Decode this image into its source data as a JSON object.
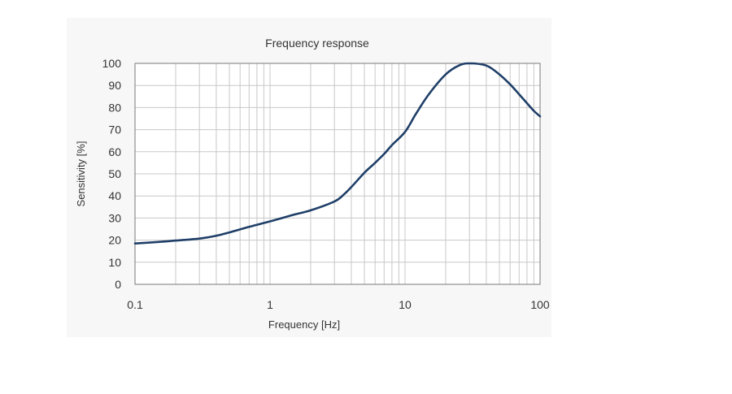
{
  "chart_data": {
    "type": "line",
    "title": "Frequency response",
    "xlabel": "Frequency [Hz]",
    "ylabel": "Sensitivity [%]",
    "xscale": "log",
    "xlim": [
      0.1,
      100
    ],
    "ylim": [
      0,
      100
    ],
    "x_ticks": [
      0.1,
      1,
      10,
      100
    ],
    "x_tick_labels": [
      "0.1",
      "1",
      "10",
      "100"
    ],
    "y_ticks": [
      0,
      10,
      20,
      30,
      40,
      50,
      60,
      70,
      80,
      90,
      100
    ],
    "grid": true,
    "colors": {
      "line": "#1f3f68",
      "grid": "#c8c8c8",
      "plot_background": "#ffffff",
      "panel_background": "#f7f7f7"
    },
    "series": [
      {
        "x": [
          0.1,
          0.15,
          0.2,
          0.3,
          0.4,
          0.5,
          0.7,
          1,
          1.5,
          2,
          3,
          3.5,
          4,
          5,
          6,
          7,
          8,
          10,
          12,
          15,
          20,
          25,
          30,
          40,
          50,
          60,
          70,
          80,
          90,
          100
        ],
        "values": [
          18.5,
          19.2,
          19.8,
          20.7,
          22,
          23.5,
          26,
          28.5,
          31.5,
          33.5,
          37.5,
          40.5,
          44,
          50.5,
          55,
          59,
          63,
          69,
          77,
          86,
          95,
          99,
          100,
          99,
          95,
          90.5,
          86,
          82,
          78.5,
          76
        ]
      }
    ]
  }
}
